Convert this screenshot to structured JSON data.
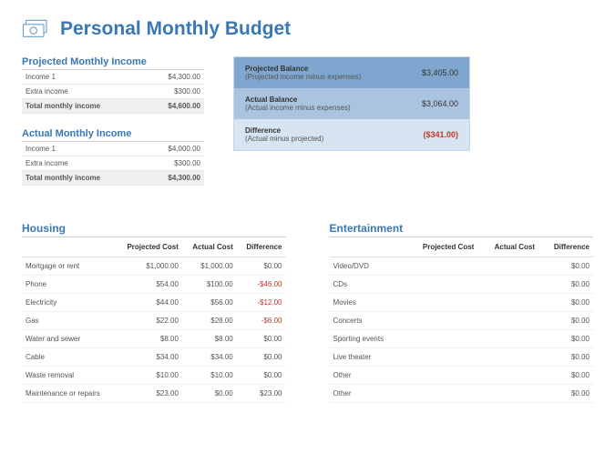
{
  "title": "Personal Monthly Budget",
  "icon_color": "#3a77b5",
  "projected_income": {
    "title": "Projected Monthly Income",
    "rows": [
      {
        "label": "Income 1",
        "value": "$4,300.00"
      },
      {
        "label": "Extra income",
        "value": "$300.00"
      }
    ],
    "total_label": "Total monthly income",
    "total_value": "$4,600.00"
  },
  "actual_income": {
    "title": "Actual Monthly Income",
    "rows": [
      {
        "label": "Income 1",
        "value": "$4,000.00"
      },
      {
        "label": "Extra income",
        "value": "$300.00"
      }
    ],
    "total_label": "Total monthly income",
    "total_value": "$4,300.00"
  },
  "balance": {
    "rows": [
      {
        "main": "Projected Balance",
        "sub": "(Projected income minus expenses)",
        "value": "$3,405.00"
      },
      {
        "main": "Actual Balance",
        "sub": "(Actual income minus expenses)",
        "value": "$3,064.00"
      },
      {
        "main": "Difference",
        "sub": "(Actual minus projected)",
        "value": "($341.00)"
      }
    ]
  },
  "columns": {
    "c1": "Projected Cost",
    "c2": "Actual Cost",
    "c3": "Difference"
  },
  "housing": {
    "title": "Housing",
    "rows": [
      {
        "label": "Mortgage or rent",
        "proj": "$1,000.00",
        "act": "$1,000.00",
        "diff": "$0.00",
        "neg": false
      },
      {
        "label": "Phone",
        "proj": "$54.00",
        "act": "$100.00",
        "diff": "-$46.00",
        "neg": true
      },
      {
        "label": "Electricity",
        "proj": "$44.00",
        "act": "$56.00",
        "diff": "-$12.00",
        "neg": true
      },
      {
        "label": "Gas",
        "proj": "$22.00",
        "act": "$28.00",
        "diff": "-$6.00",
        "neg": true
      },
      {
        "label": "Water and sewer",
        "proj": "$8.00",
        "act": "$8.00",
        "diff": "$0.00",
        "neg": false
      },
      {
        "label": "Cable",
        "proj": "$34.00",
        "act": "$34.00",
        "diff": "$0.00",
        "neg": false
      },
      {
        "label": "Waste removal",
        "proj": "$10.00",
        "act": "$10.00",
        "diff": "$0.00",
        "neg": false
      },
      {
        "label": "Maintenance or repairs",
        "proj": "$23.00",
        "act": "$0.00",
        "diff": "$23.00",
        "neg": false
      }
    ]
  },
  "entertainment": {
    "title": "Entertainment",
    "rows": [
      {
        "label": "Video/DVD",
        "proj": "",
        "act": "",
        "diff": "$0.00"
      },
      {
        "label": "CDs",
        "proj": "",
        "act": "",
        "diff": "$0.00"
      },
      {
        "label": "Movies",
        "proj": "",
        "act": "",
        "diff": "$0.00"
      },
      {
        "label": "Concerts",
        "proj": "",
        "act": "",
        "diff": "$0.00"
      },
      {
        "label": "Sporting events",
        "proj": "",
        "act": "",
        "diff": "$0.00"
      },
      {
        "label": "Live theater",
        "proj": "",
        "act": "",
        "diff": "$0.00"
      },
      {
        "label": "Other",
        "proj": "",
        "act": "",
        "diff": "$0.00"
      },
      {
        "label": "Other",
        "proj": "",
        "act": "",
        "diff": "$0.00"
      }
    ]
  }
}
